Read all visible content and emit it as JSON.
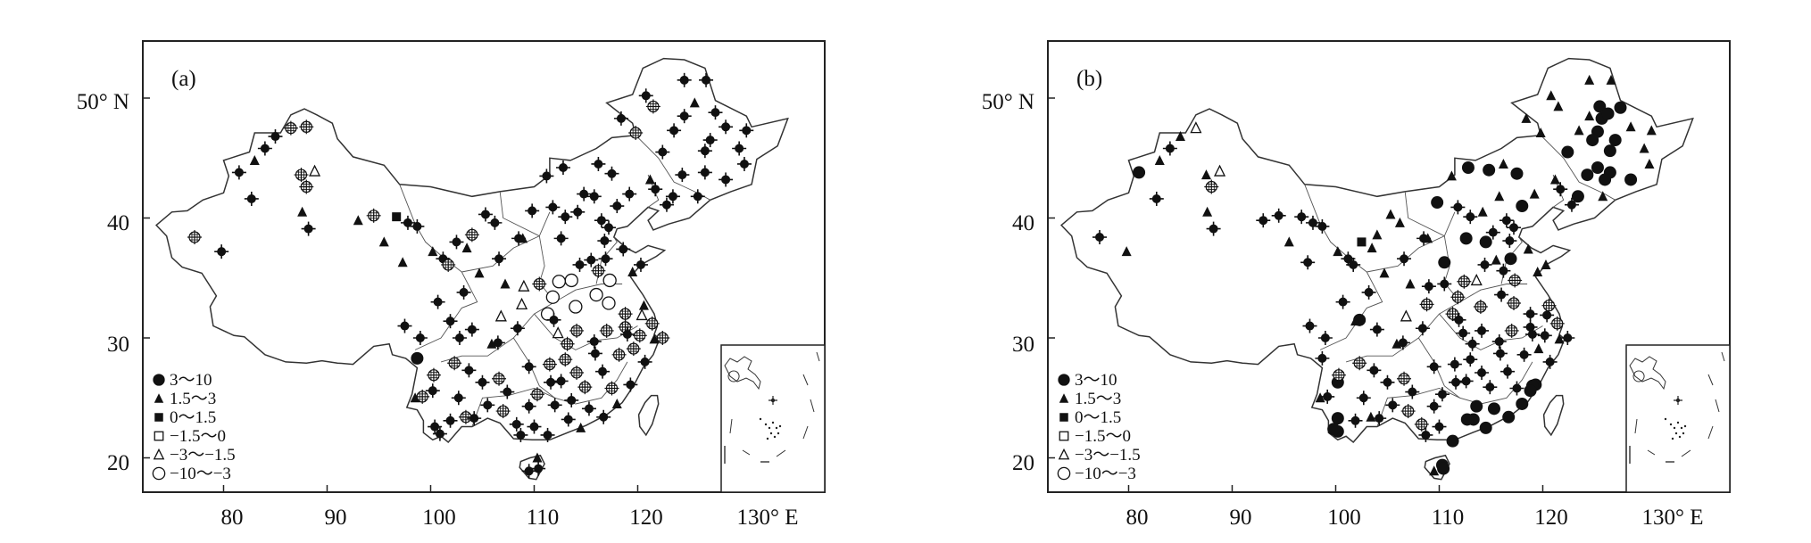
{
  "panels": [
    {
      "label": "(a)"
    },
    {
      "label": "(b)"
    }
  ],
  "axes": {
    "y_ticks": [
      "50° N",
      "40",
      "30",
      "20"
    ],
    "x_ticks": [
      "80",
      "90",
      "100",
      "110",
      "120",
      "130° E"
    ]
  },
  "legend": [
    {
      "symbol": "filled-circle",
      "label": "3～10"
    },
    {
      "symbol": "filled-triangle",
      "label": "1.5～3"
    },
    {
      "symbol": "filled-square",
      "label": "0～1.5"
    },
    {
      "symbol": "open-square",
      "label": "−1.5～0"
    },
    {
      "symbol": "open-triangle",
      "label": "−3～−1.5"
    },
    {
      "symbol": "open-circle",
      "label": "−10～−3"
    }
  ]
}
